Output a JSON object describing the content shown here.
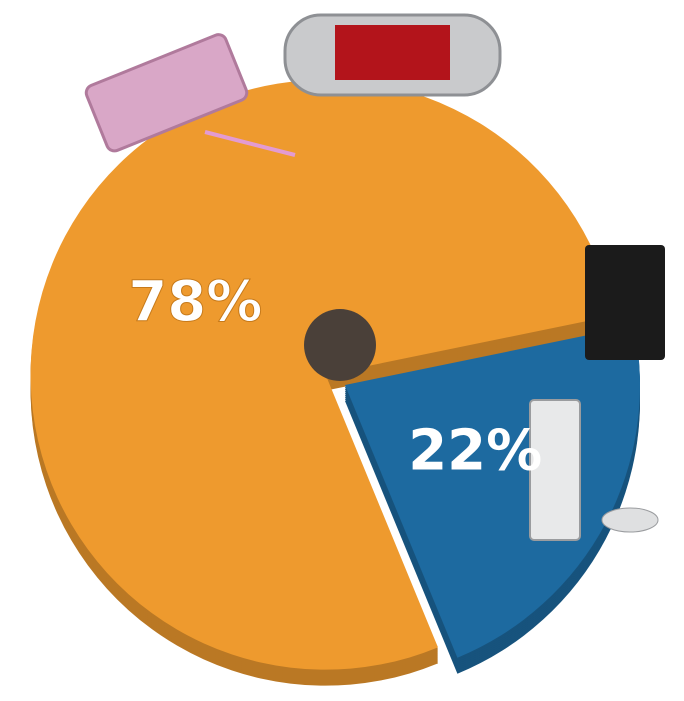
{
  "chart_data": {
    "type": "pie",
    "values": [
      78,
      22
    ],
    "value_labels": [
      "78%",
      "22%"
    ],
    "colors": [
      "#ee9a2e",
      "#1d6aa0"
    ]
  }
}
